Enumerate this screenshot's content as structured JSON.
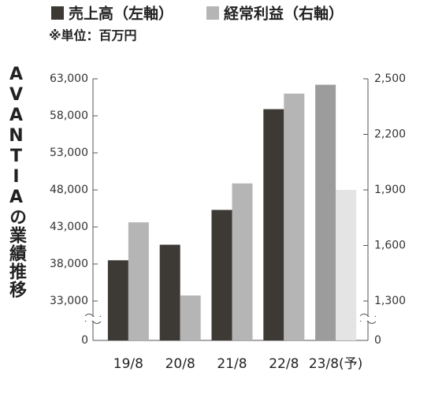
{
  "chart_data": {
    "type": "bar",
    "subtitle": "※単位：百万円",
    "y_label": "AVANTIAの業績推移",
    "categories": [
      "19/8",
      "20/8",
      "21/8",
      "22/8",
      "23/8(予)"
    ],
    "series": [
      {
        "name": "売上高（左軸）",
        "color": "#3d3a36",
        "colors": [
          "#3d3a36",
          "#3d3a36",
          "#3d3a36",
          "#3d3a36",
          "#9c9c9c"
        ],
        "values": [
          38500,
          40600,
          45300,
          58900,
          62200
        ]
      },
      {
        "name": "経常利益（右軸）",
        "color": "#b5b5b5",
        "axis": "y2",
        "colors": [
          "#b5b5b5",
          "#b5b5b5",
          "#b5b5b5",
          "#b5b5b5",
          "#e4e4e4"
        ],
        "values": [
          1725,
          1330,
          1935,
          2420,
          1900
        ]
      }
    ],
    "ylim": [
      0,
      63000
    ],
    "y_break": [
      0,
      33000
    ],
    "yticks": [
      0,
      {
        "value": 33000,
        "label": "33,000"
      },
      {
        "value": 38000,
        "label": "38,000"
      },
      {
        "value": 43000,
        "label": "43,000"
      },
      {
        "value": 48000,
        "label": "48,000"
      },
      {
        "value": 53000,
        "label": "53,000"
      },
      {
        "value": 58000,
        "label": "58,000"
      },
      {
        "value": 63000,
        "label": "63,000"
      }
    ],
    "y2lim": [
      0,
      2500
    ],
    "y2_break": [
      0,
      1300
    ],
    "y2ticks": [
      0,
      {
        "value": 1300,
        "label": "1,300"
      },
      {
        "value": 1600,
        "label": "1,600"
      },
      {
        "value": 1900,
        "label": "1,900"
      },
      {
        "value": 2200,
        "label": "2,200"
      },
      {
        "value": 2500,
        "label": "2,500"
      }
    ],
    "grid": false
  }
}
